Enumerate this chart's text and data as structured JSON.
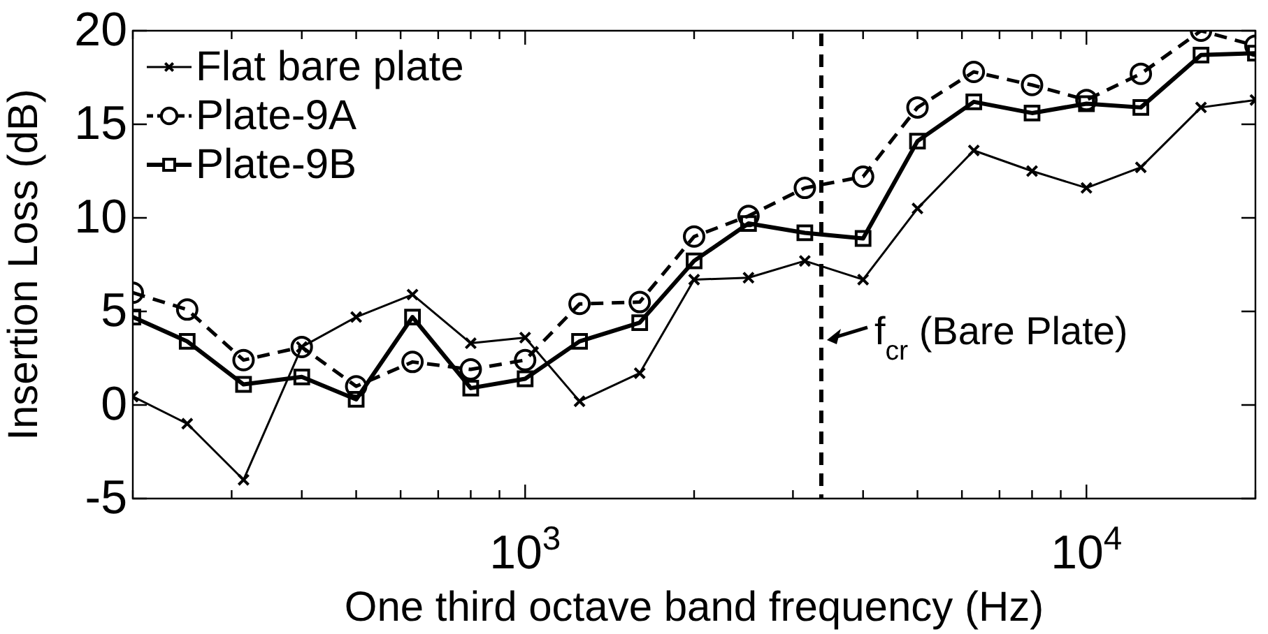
{
  "chart_data": {
    "type": "line",
    "xlabel": "One third octave band frequency (Hz)",
    "ylabel": "Insertion Loss (dB)",
    "log": "x",
    "x": [
      200,
      250,
      315,
      400,
      500,
      630,
      800,
      1000,
      1250,
      1600,
      2000,
      2500,
      3150,
      4000,
      5000,
      6300,
      8000,
      10000,
      12500,
      16000,
      20000
    ],
    "xlim": [
      200,
      20000
    ],
    "xticks": [
      {
        "value": 200,
        "label": null
      },
      {
        "value": 300,
        "label": null
      },
      {
        "value": 400,
        "label": null
      },
      {
        "value": 500,
        "label": null
      },
      {
        "value": 600,
        "label": null
      },
      {
        "value": 700,
        "label": null
      },
      {
        "value": 800,
        "label": null
      },
      {
        "value": 900,
        "label": null
      },
      {
        "value": 1000,
        "label": "10$^{3}$"
      },
      {
        "value": 2000,
        "label": null
      },
      {
        "value": 3000,
        "label": null
      },
      {
        "value": 4000,
        "label": null
      },
      {
        "value": 5000,
        "label": null
      },
      {
        "value": 6000,
        "label": null
      },
      {
        "value": 7000,
        "label": null
      },
      {
        "value": 8000,
        "label": null
      },
      {
        "value": 9000,
        "label": null
      },
      {
        "value": 10000,
        "label": "10$^{4}$"
      },
      {
        "value": 20000,
        "label": null
      }
    ],
    "ylim": [
      -5,
      20
    ],
    "yticks": [
      -5,
      0,
      5,
      10,
      15,
      20
    ],
    "grid": false,
    "legend": "top left",
    "series": [
      {
        "name": "Flat bare plate",
        "color": "#000000",
        "marker": "cross",
        "line_style": "solid",
        "values": [
          0.45,
          -1.0,
          -4.0,
          3.1,
          4.7,
          5.9,
          3.3,
          3.6,
          0.2,
          1.7,
          6.7,
          6.8,
          7.7,
          6.7,
          10.5,
          13.6,
          12.5,
          11.6,
          12.7,
          15.9,
          16.3
        ]
      },
      {
        "name": "Plate-9A",
        "color": "#000000",
        "marker": "circle",
        "line_style": "dashed",
        "values": [
          6.0,
          5.1,
          2.4,
          3.1,
          1.0,
          2.3,
          1.9,
          2.4,
          5.4,
          5.5,
          9.0,
          10.1,
          11.6,
          12.2,
          15.9,
          17.8,
          17.1,
          16.3,
          17.7,
          20.0,
          19.2
        ]
      },
      {
        "name": "Plate-9B",
        "color": "#000000",
        "marker": "square",
        "line_style": "solid",
        "values": [
          4.7,
          3.4,
          1.1,
          1.5,
          0.3,
          4.7,
          0.9,
          1.4,
          3.4,
          4.4,
          7.7,
          9.7,
          9.2,
          8.9,
          14.1,
          16.2,
          15.6,
          16.1,
          15.9,
          18.7,
          18.8
        ]
      }
    ],
    "ref_lines": [
      {
        "axis": "x",
        "value": 3370,
        "label": "f$_{cr}$ (Bare Plate)",
        "color": "#000000",
        "line_style": "dashed"
      }
    ]
  }
}
